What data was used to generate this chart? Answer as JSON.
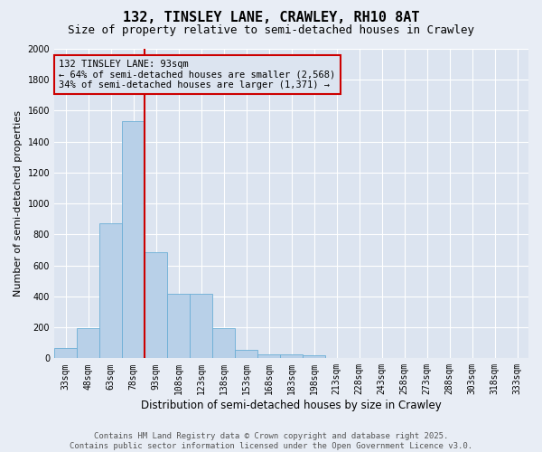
{
  "title1": "132, TINSLEY LANE, CRAWLEY, RH10 8AT",
  "title2": "Size of property relative to semi-detached houses in Crawley",
  "xlabel": "Distribution of semi-detached houses by size in Crawley",
  "ylabel": "Number of semi-detached properties",
  "footer1": "Contains HM Land Registry data © Crown copyright and database right 2025.",
  "footer2": "Contains public sector information licensed under the Open Government Licence v3.0.",
  "categories": [
    "33sqm",
    "48sqm",
    "63sqm",
    "78sqm",
    "93sqm",
    "108sqm",
    "123sqm",
    "138sqm",
    "153sqm",
    "168sqm",
    "183sqm",
    "198sqm",
    "213sqm",
    "228sqm",
    "243sqm",
    "258sqm",
    "273sqm",
    "288sqm",
    "303sqm",
    "318sqm",
    "333sqm"
  ],
  "values": [
    65,
    195,
    875,
    1530,
    685,
    415,
    415,
    195,
    55,
    25,
    25,
    20,
    0,
    0,
    0,
    0,
    0,
    0,
    0,
    0,
    0
  ],
  "bar_color": "#b8d0e8",
  "bar_edge_color": "#6baed6",
  "red_line_color": "#cc0000",
  "annotation_box_edge_color": "#cc0000",
  "property_label": "132 TINSLEY LANE: 93sqm",
  "annotation_smaller": "← 64% of semi-detached houses are smaller (2,568)",
  "annotation_larger": "34% of semi-detached houses are larger (1,371) →",
  "ylim": [
    0,
    2000
  ],
  "yticks": [
    0,
    200,
    400,
    600,
    800,
    1000,
    1200,
    1400,
    1600,
    1800,
    2000
  ],
  "bg_color": "#e8edf5",
  "plot_bg_color": "#dce4f0",
  "grid_color": "#ffffff",
  "title_fontsize": 11,
  "subtitle_fontsize": 9,
  "ylabel_fontsize": 8,
  "xlabel_fontsize": 8.5,
  "tick_fontsize": 7,
  "footer_fontsize": 6.5,
  "ann_fontsize": 7.5,
  "red_line_index": 4
}
